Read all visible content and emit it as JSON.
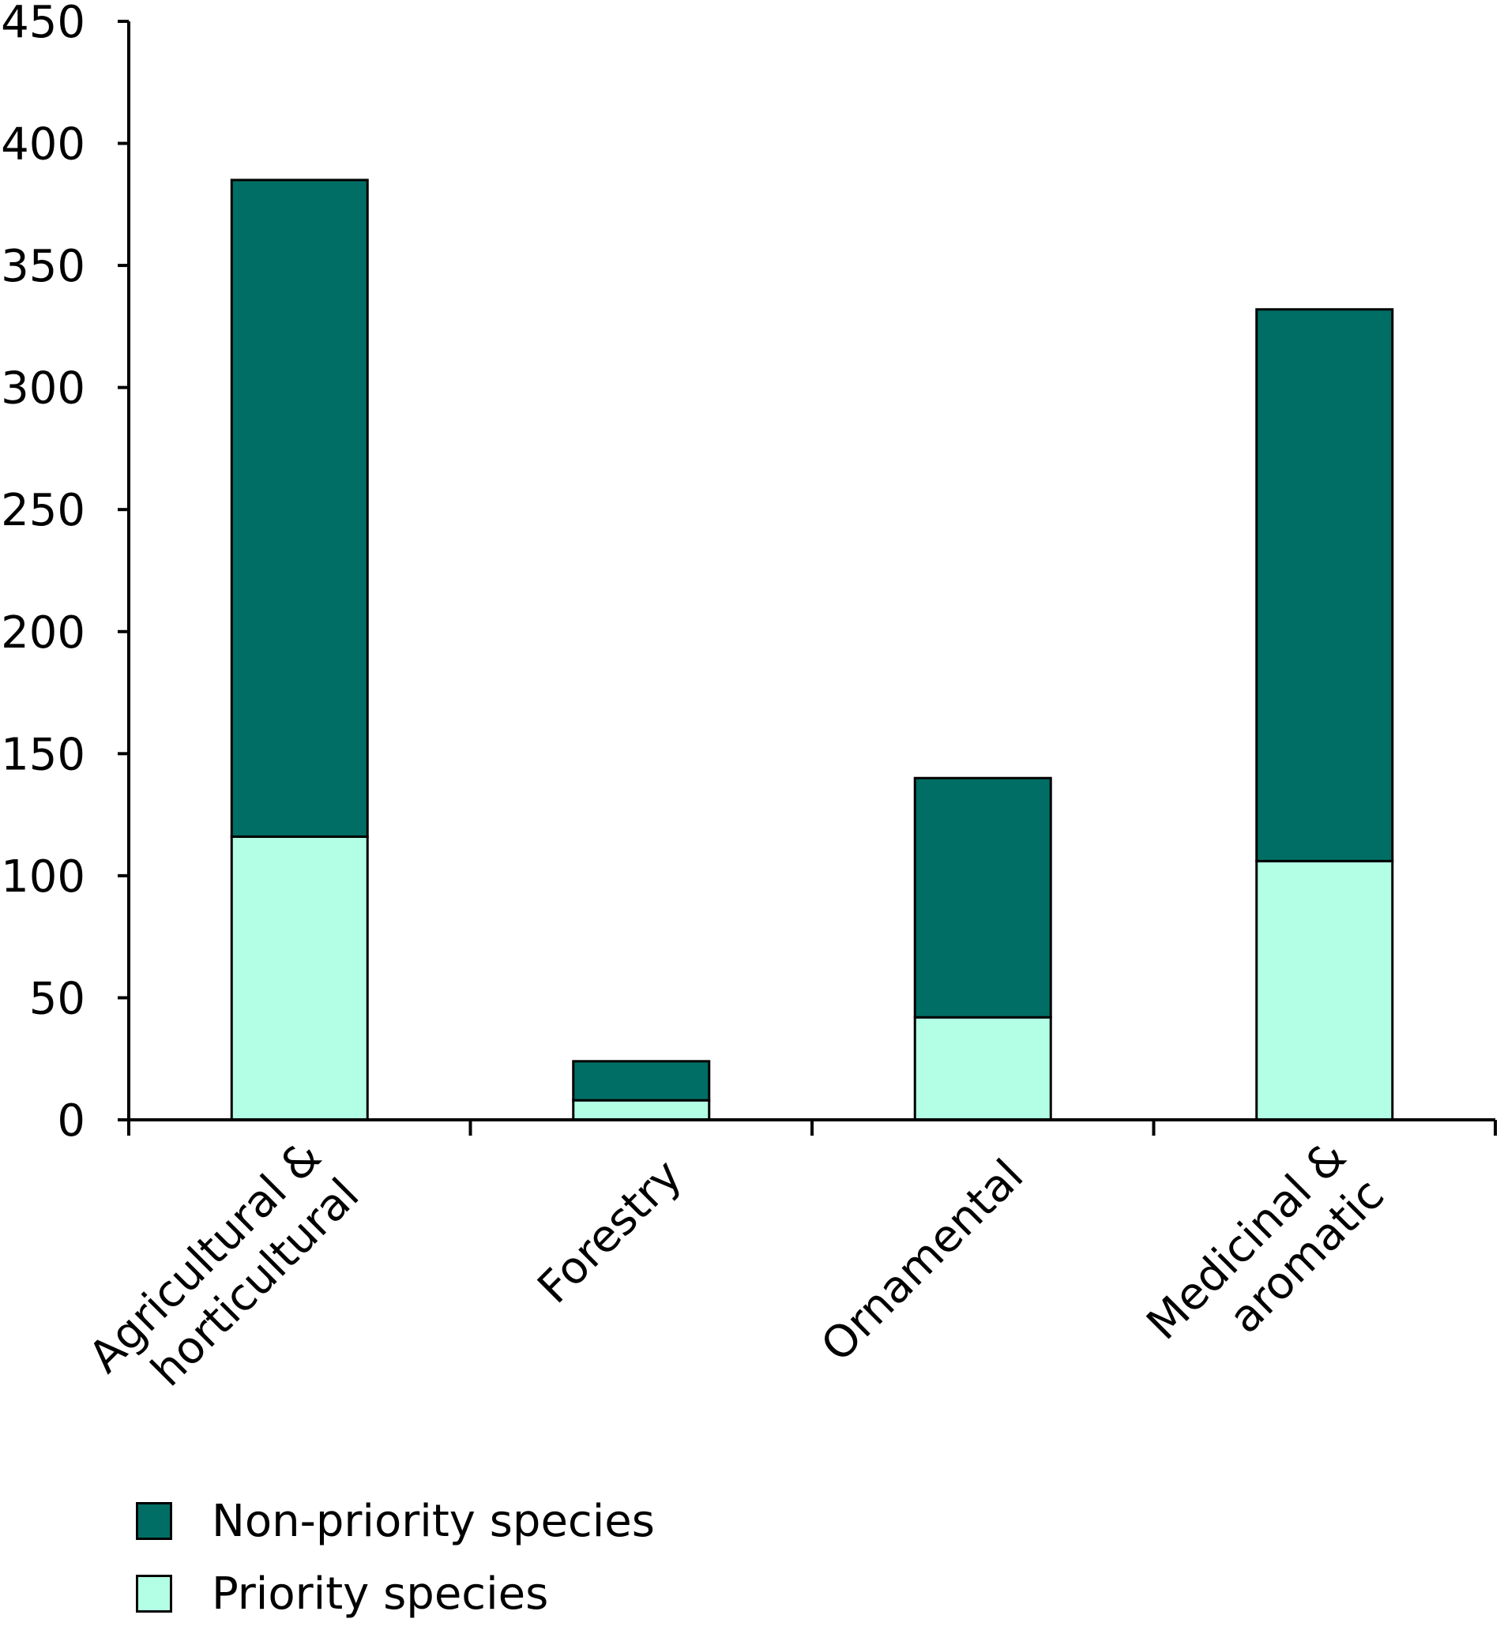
{
  "chart_data": {
    "type": "bar",
    "stacked": true,
    "title": "",
    "xlabel": "",
    "ylabel": "",
    "ylim": [
      0,
      450
    ],
    "yticks": [
      0,
      50,
      100,
      150,
      200,
      250,
      300,
      350,
      400,
      450
    ],
    "grid": false,
    "categories": [
      [
        "Agricultural &",
        "horticultural"
      ],
      [
        "Forestry"
      ],
      [
        "Ornamental"
      ],
      [
        "Medicinal &",
        "aromatic"
      ]
    ],
    "series": [
      {
        "name": "Priority species",
        "color": "#b3ffe6",
        "values": [
          116,
          8,
          42,
          106
        ]
      },
      {
        "name": "Non-priority species",
        "color": "#006e64",
        "values": [
          269,
          16,
          98,
          226
        ]
      }
    ],
    "totals": [
      385,
      24,
      140,
      332
    ],
    "legend_position": "bottom-left"
  },
  "legend": {
    "items": [
      {
        "label": "Non-priority species",
        "color": "#006e64"
      },
      {
        "label": "Priority species",
        "color": "#b3ffe6"
      }
    ]
  }
}
